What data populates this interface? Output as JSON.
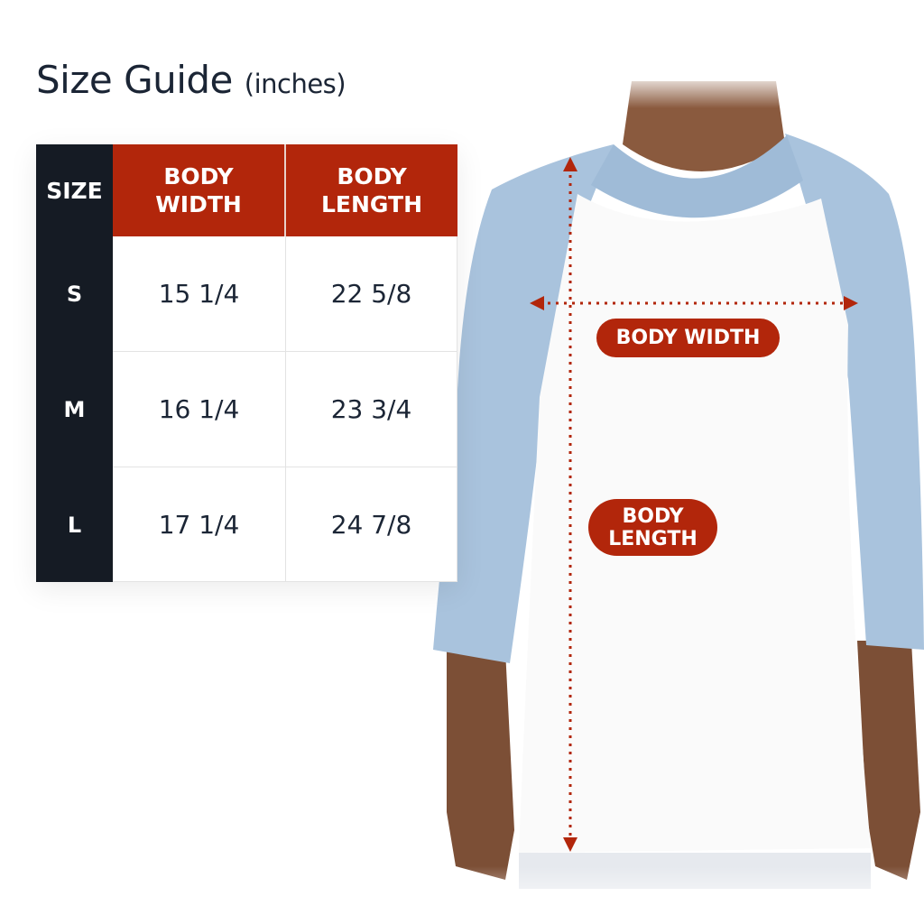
{
  "title": {
    "main": "Size Guide",
    "unit": "(inches)"
  },
  "table": {
    "headers": [
      "SIZE",
      "BODY WIDTH",
      "BODY LENGTH"
    ],
    "header_lines": {
      "width": [
        "BODY",
        "WIDTH"
      ],
      "length": [
        "BODY",
        "LENGTH"
      ]
    },
    "rows": [
      {
        "size": "S",
        "body_width": "15 1/4",
        "body_length": "22 5/8"
      },
      {
        "size": "M",
        "body_width": "16 1/4",
        "body_length": "23 3/4"
      },
      {
        "size": "L",
        "body_width": "17 1/4",
        "body_length": "24 7/8"
      }
    ]
  },
  "diagram": {
    "width_label": "BODY WIDTH",
    "length_label_lines": [
      "BODY",
      "LENGTH"
    ]
  },
  "colors": {
    "accent": "#b2260b",
    "dark": "#151b24",
    "sleeve": "#a9c3dd",
    "text": "#1b2535"
  }
}
